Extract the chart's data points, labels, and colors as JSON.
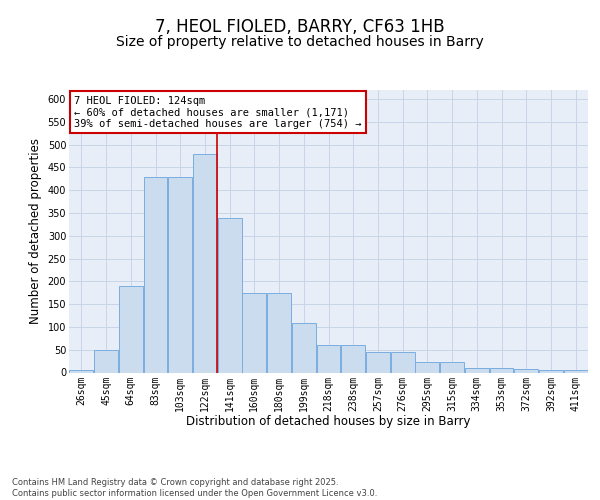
{
  "title_line1": "7, HEOL FIOLED, BARRY, CF63 1HB",
  "title_line2": "Size of property relative to detached houses in Barry",
  "xlabel": "Distribution of detached houses by size in Barry",
  "ylabel": "Number of detached properties",
  "categories": [
    "26sqm",
    "45sqm",
    "64sqm",
    "83sqm",
    "103sqm",
    "122sqm",
    "141sqm",
    "160sqm",
    "180sqm",
    "199sqm",
    "218sqm",
    "238sqm",
    "257sqm",
    "276sqm",
    "295sqm",
    "315sqm",
    "334sqm",
    "353sqm",
    "372sqm",
    "392sqm",
    "411sqm"
  ],
  "bar_values": [
    5,
    50,
    190,
    430,
    430,
    480,
    338,
    175,
    175,
    108,
    60,
    60,
    44,
    44,
    22,
    22,
    10,
    10,
    8,
    5,
    5
  ],
  "bar_color": "#ccdcef",
  "bar_edge_color": "#7aade0",
  "grid_color": "#c8d4e8",
  "background_color": "#e8eef8",
  "vline_color": "#cc0000",
  "vline_x": 5.5,
  "annotation_text": "7 HEOL FIOLED: 124sqm\n← 60% of detached houses are smaller (1,171)\n39% of semi-detached houses are larger (754) →",
  "footnote": "Contains HM Land Registry data © Crown copyright and database right 2025.\nContains public sector information licensed under the Open Government Licence v3.0.",
  "ylim_max": 620,
  "yticks": [
    0,
    50,
    100,
    150,
    200,
    250,
    300,
    350,
    400,
    450,
    500,
    550,
    600
  ],
  "title_fontsize": 12,
  "subtitle_fontsize": 10,
  "axis_label_fontsize": 8.5,
  "tick_fontsize": 7,
  "annotation_fontsize": 7.5,
  "footnote_fontsize": 6
}
